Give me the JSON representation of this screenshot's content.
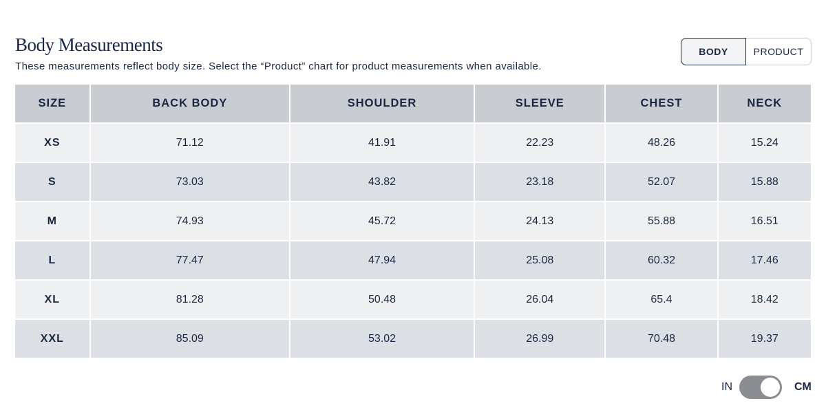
{
  "header": {
    "title": "Body Measurements",
    "subtitle": "These measurements reflect body size. Select the “Product” chart for product measurements when available."
  },
  "tabs": [
    "BODY",
    "PRODUCT"
  ],
  "table": {
    "columns": [
      "SIZE",
      "BACK BODY",
      "SHOULDER",
      "SLEEVE",
      "CHEST",
      "NECK"
    ],
    "rows": [
      [
        "XS",
        "71.12",
        "41.91",
        "22.23",
        "48.26",
        "15.24"
      ],
      [
        "S",
        "73.03",
        "43.82",
        "23.18",
        "52.07",
        "15.88"
      ],
      [
        "M",
        "74.93",
        "45.72",
        "24.13",
        "55.88",
        "16.51"
      ],
      [
        "L",
        "77.47",
        "47.94",
        "25.08",
        "60.32",
        "17.46"
      ],
      [
        "XL",
        "81.28",
        "50.48",
        "26.04",
        "65.4",
        "18.42"
      ],
      [
        "XXL",
        "85.09",
        "53.02",
        "26.99",
        "70.48",
        "19.37"
      ]
    ]
  },
  "unit_toggle": {
    "left": "IN",
    "right": "CM"
  }
}
